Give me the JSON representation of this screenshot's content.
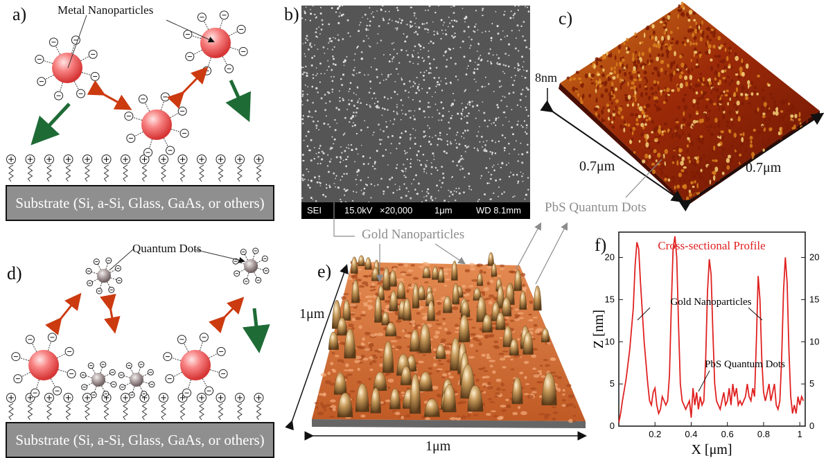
{
  "panels": {
    "a": "a)",
    "b": "b)",
    "c": "c)",
    "d": "d)",
    "e": "e)",
    "f": "f)"
  },
  "panel_a": {
    "callout": "Metal Nanoparticles",
    "substrate": "Substrate (Si, a-Si, Glass, GaAs, or others)"
  },
  "panel_b": {
    "sem_bar": {
      "mode": "SEI",
      "voltage": "15.0kV",
      "mag": "×20,000",
      "scale": "1μm",
      "wd": "WD 8.1mm"
    }
  },
  "panel_c": {
    "height": "8nm",
    "x_extent": "0.7μm",
    "y_extent": "0.7μm",
    "callout": "PbS Quantum Dots"
  },
  "panel_d": {
    "callout": "Quantum Dots",
    "substrate": "Substrate (Si, a-Si, Glass, GaAs, or others)"
  },
  "panel_e": {
    "callout": "Gold Nanoparticles",
    "depth": "1μm",
    "width": "1μm"
  },
  "chart_data": {
    "type": "line",
    "title": "Cross-sectional Profile",
    "xlabel": "X [μm]",
    "ylabel": "Z [nm]",
    "xlim": [
      0,
      1.03
    ],
    "ylim": [
      0,
      23
    ],
    "x_ticks": [
      "0.2",
      "0.4",
      "0.6",
      "0.8",
      "1"
    ],
    "y_ticks": [
      "0",
      "5",
      "10",
      "15",
      "20"
    ],
    "annotations": [
      "Gold Nanoparticles",
      "PbS Quantum Dots"
    ],
    "color": "#e02020",
    "series": [
      {
        "x": [
          0.0,
          0.01,
          0.02,
          0.04,
          0.06,
          0.08,
          0.09,
          0.1,
          0.11,
          0.12,
          0.14,
          0.16,
          0.17,
          0.18,
          0.19,
          0.2,
          0.21,
          0.22,
          0.23,
          0.24,
          0.25,
          0.26,
          0.27,
          0.28,
          0.29,
          0.3,
          0.31,
          0.32,
          0.33,
          0.34,
          0.35,
          0.36,
          0.37,
          0.38,
          0.39,
          0.4,
          0.41,
          0.42,
          0.43,
          0.44,
          0.45,
          0.46,
          0.47,
          0.48,
          0.49,
          0.5,
          0.51,
          0.52,
          0.53,
          0.54,
          0.55,
          0.56,
          0.57,
          0.58,
          0.59,
          0.6,
          0.61,
          0.62,
          0.63,
          0.64,
          0.65,
          0.66,
          0.67,
          0.68,
          0.69,
          0.7,
          0.71,
          0.72,
          0.73,
          0.74,
          0.75,
          0.76,
          0.77,
          0.78,
          0.79,
          0.8,
          0.81,
          0.82,
          0.83,
          0.84,
          0.85,
          0.86,
          0.87,
          0.88,
          0.89,
          0.9,
          0.91,
          0.92,
          0.93,
          0.94,
          0.95,
          0.96,
          0.97,
          0.98,
          0.99,
          1.0,
          1.01,
          1.02
        ],
        "y": [
          0.4,
          1.5,
          3,
          5.5,
          9,
          14,
          19,
          21.8,
          21,
          17,
          10,
          5,
          3,
          2.5,
          4,
          4.5,
          2.5,
          1.5,
          2,
          3.5,
          3,
          2.5,
          3,
          6,
          14,
          21,
          22.5,
          20,
          12,
          5,
          3,
          2.5,
          2,
          2.5,
          3,
          1,
          4.5,
          2.5,
          4,
          2,
          3.5,
          2.5,
          3,
          8,
          16,
          19.8,
          18,
          11,
          5,
          3,
          2.5,
          2,
          3,
          4,
          2.5,
          3,
          4.5,
          2.5,
          5,
          3.5,
          4.5,
          2.5,
          3,
          2.5,
          3,
          3.5,
          5,
          3.5,
          3,
          4.5,
          3.5,
          10,
          17.8,
          15,
          8,
          4,
          3,
          4,
          5,
          3,
          4,
          5,
          2.5,
          2,
          3,
          8,
          16,
          20,
          17,
          9,
          3.5,
          1.5,
          2.5,
          1.5,
          3.5,
          2.5,
          3.5,
          3
        ]
      }
    ]
  }
}
